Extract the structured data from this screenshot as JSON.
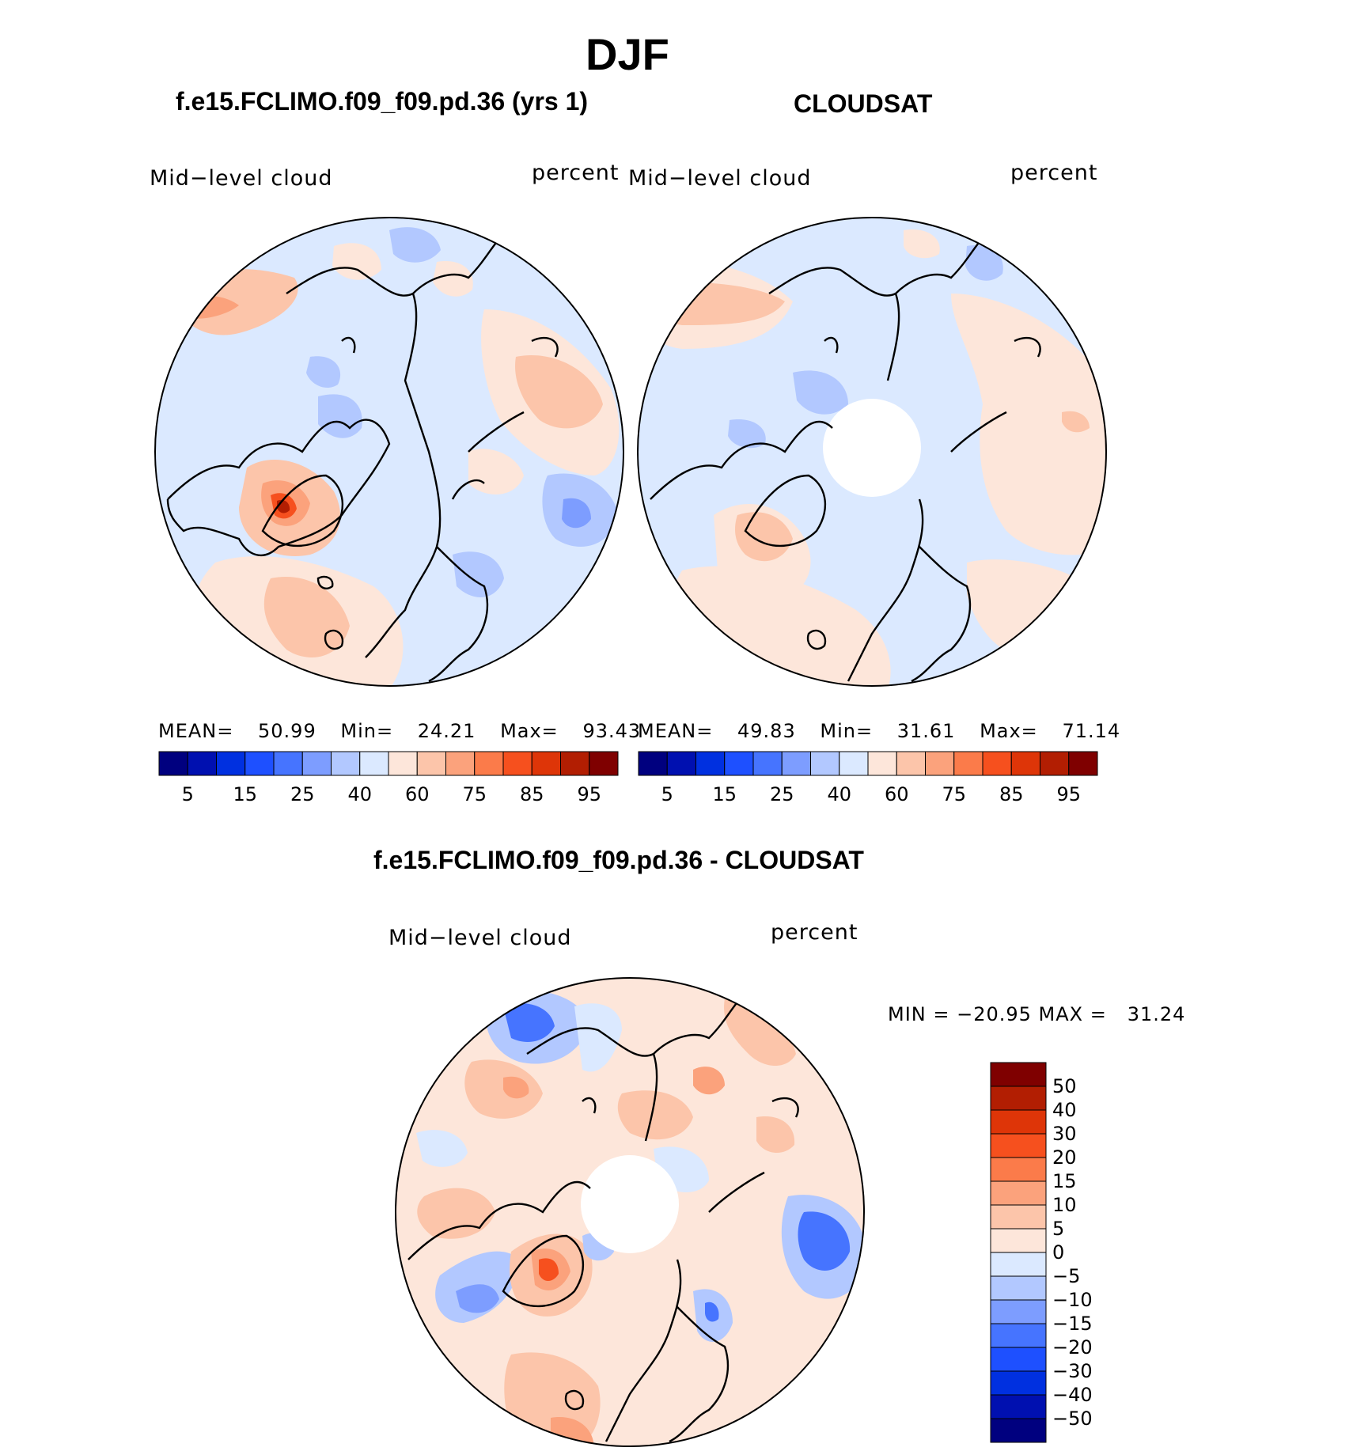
{
  "figure": {
    "title": "DJF"
  },
  "panel_model": {
    "title": "f.e15.FCLIMO.f09_f09.pd.36 (yrs 1)",
    "left_label": "Mid−level cloud",
    "right_label": "percent",
    "stats": {
      "mean_label": "MEAN=",
      "mean_value": "50.99",
      "min_label": "Min=",
      "min_value": "24.21",
      "max_label": "Max=",
      "max_value": "93.43"
    }
  },
  "panel_obs": {
    "title": "CLOUDSAT",
    "left_label": "Mid−level cloud",
    "right_label": "percent",
    "stats": {
      "mean_label": "MEAN=",
      "mean_value": "49.83",
      "min_label": "Min=",
      "min_value": "31.61",
      "max_label": "Max=",
      "max_value": "71.14"
    }
  },
  "panel_diff": {
    "title": "f.e15.FCLIMO.f09_f09.pd.36 - CLOUDSAT",
    "left_label": "Mid−level cloud",
    "right_label": "percent",
    "minmax_text": "MIN = −20.95 MAX =   31.24"
  },
  "colorbar_abs": {
    "colors": [
      "#00007f",
      "#0010b0",
      "#0030e0",
      "#1e50ff",
      "#4674ff",
      "#7d9dff",
      "#b2c8ff",
      "#dbe9ff",
      "#fde6da",
      "#fcc5aa",
      "#fba27c",
      "#fb7b4a",
      "#f6501e",
      "#de3508",
      "#b21e02",
      "#7f0000"
    ],
    "tick_labels": [
      "5",
      "15",
      "25",
      "40",
      "60",
      "75",
      "85",
      "95"
    ]
  },
  "colorbar_diff": {
    "colors": [
      "#7f0000",
      "#b21e02",
      "#de3508",
      "#f6501e",
      "#fb7b4a",
      "#fba27c",
      "#fcc5aa",
      "#fde6da",
      "#dbe9ff",
      "#b2c8ff",
      "#7d9dff",
      "#4674ff",
      "#1e50ff",
      "#0030e0",
      "#0010b0",
      "#00007f"
    ],
    "tick_labels": [
      "50",
      "40",
      "30",
      "20",
      "15",
      "10",
      "5",
      "0",
      "−5",
      "−10",
      "−15",
      "−20",
      "−30",
      "−40",
      "−50"
    ]
  },
  "map_colors": {
    "light_blue": "#dbe9ff",
    "mid_blue": "#b2c8ff",
    "blue": "#7d9dff",
    "strong_blue": "#4674ff",
    "light_orange": "#fde6da",
    "orange": "#fcc5aa",
    "strong_orange": "#fba27c",
    "red": "#f6501e",
    "dark_red": "#b21e02"
  }
}
